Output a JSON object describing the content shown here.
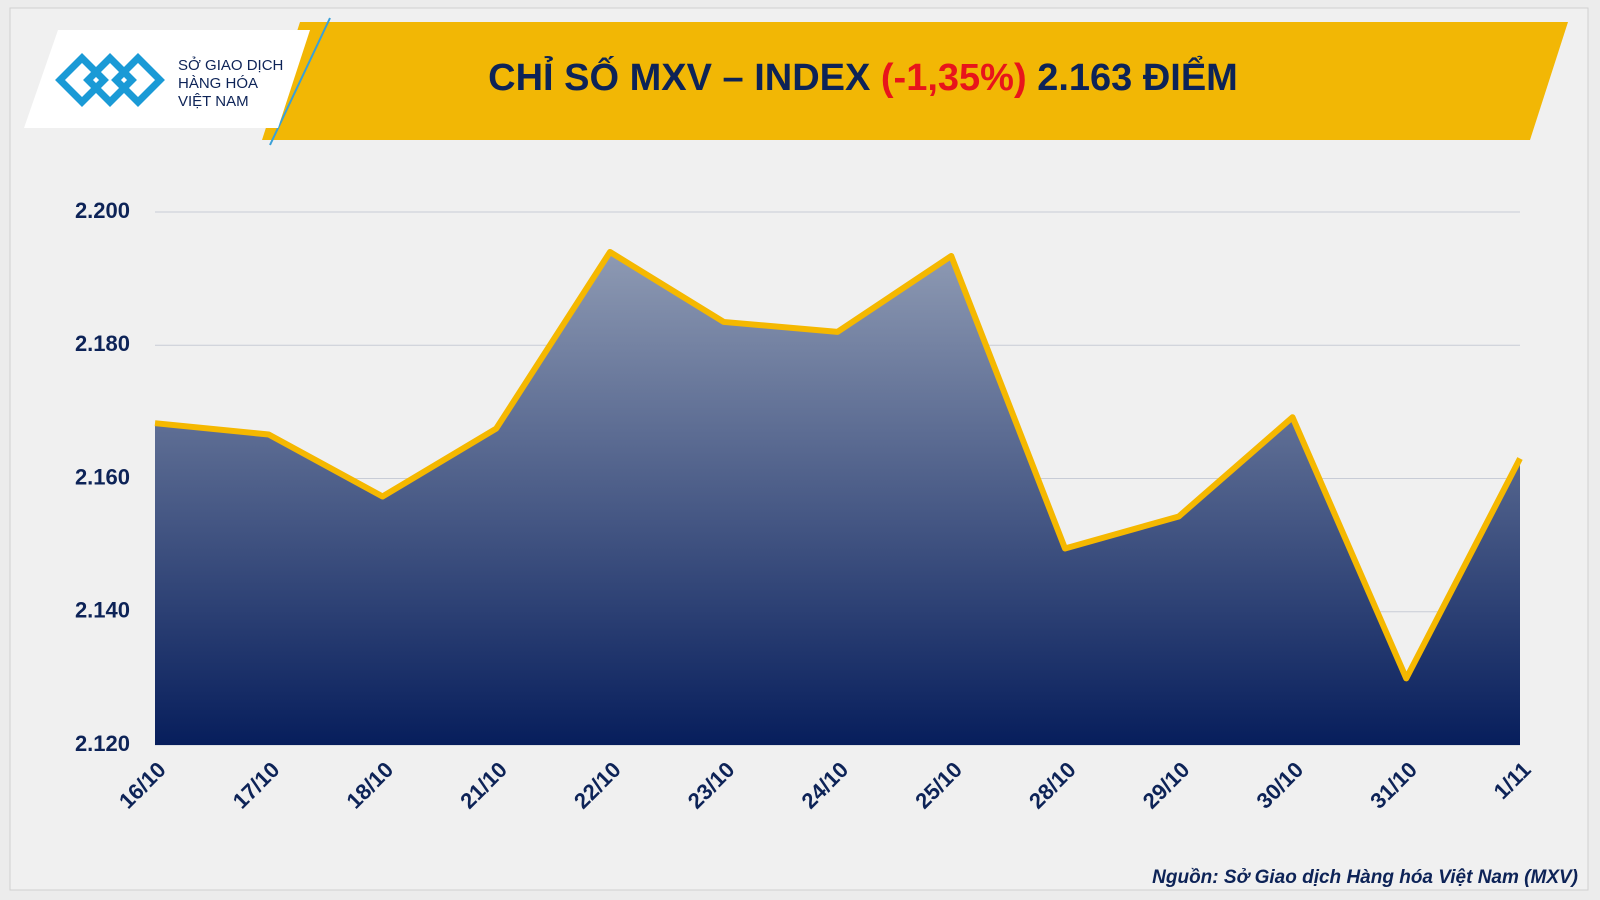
{
  "chart_data": {
    "type": "area",
    "title": "CHỈ SỐ MXV – INDEX",
    "title_change": "(-1,35%)",
    "title_value": "2.163 ĐIỂM",
    "logo_lines": [
      "SỞ GIAO DỊCH",
      "HÀNG HÓA",
      "VIỆT NAM"
    ],
    "source": "Nguồn: Sở Giao dịch Hàng hóa Việt Nam (MXV)",
    "categories": [
      "16/10",
      "17/10",
      "18/10",
      "21/10",
      "22/10",
      "23/10",
      "24/10",
      "25/10",
      "28/10",
      "29/10",
      "30/10",
      "31/10",
      "1/11"
    ],
    "values": [
      2168.3,
      2166.6,
      2157.3,
      2167.5,
      2194,
      2183.5,
      2182,
      2193.4,
      2149.5,
      2154.3,
      2169.2,
      2130,
      2163
    ],
    "color": "#f5b800",
    "fill_top": "#8e9ab3",
    "fill_bottom": "#071e5c",
    "ylim": [
      2120,
      2200
    ],
    "yticks": [
      {
        "value": 2120,
        "label": "2.120"
      },
      {
        "value": 2140,
        "label": "2.140"
      },
      {
        "value": 2160,
        "label": "2.160"
      },
      {
        "value": 2180,
        "label": "2.180"
      },
      {
        "value": 2200,
        "label": "2.200"
      }
    ],
    "grid": true
  }
}
